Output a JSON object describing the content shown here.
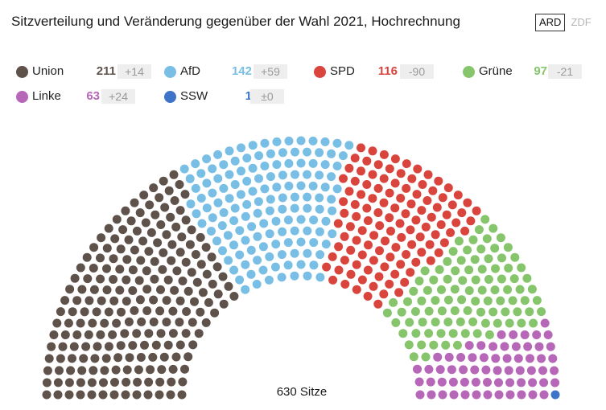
{
  "header": {
    "title": "Sitzverteilung und Veränderung gegenüber der Wahl 2021, Hochrechnung",
    "sources": [
      {
        "label": "ARD",
        "active": true
      },
      {
        "label": "ZDF",
        "active": false
      }
    ]
  },
  "chart_data": {
    "type": "hemicycle",
    "title": "Sitzverteilung und Veränderung gegenüber der Wahl 2021, Hochrechnung",
    "total_label": "630 Sitze",
    "total_seats": 630,
    "parties": [
      {
        "name": "Union",
        "seats": 211,
        "seats_label": "211",
        "change": 14,
        "change_label": "+14",
        "color": "#5f524b"
      },
      {
        "name": "AfD",
        "seats": 142,
        "seats_label": "142",
        "change": 59,
        "change_label": "+59",
        "color": "#79bfe5"
      },
      {
        "name": "SPD",
        "seats": 116,
        "seats_label": "116",
        "change": -90,
        "change_label": "-90",
        "color": "#d9453d"
      },
      {
        "name": "Grüne",
        "seats": 97,
        "seats_label": "97",
        "change": -21,
        "change_label": "-21",
        "color": "#86c56c"
      },
      {
        "name": "Linke",
        "seats": 63,
        "seats_label": "63",
        "change": 24,
        "change_label": "+24",
        "color": "#b767b7"
      },
      {
        "name": "SSW",
        "seats": 1,
        "seats_label": "1",
        "change": 0,
        "change_label": "±0",
        "color": "#3e74c7"
      }
    ]
  }
}
